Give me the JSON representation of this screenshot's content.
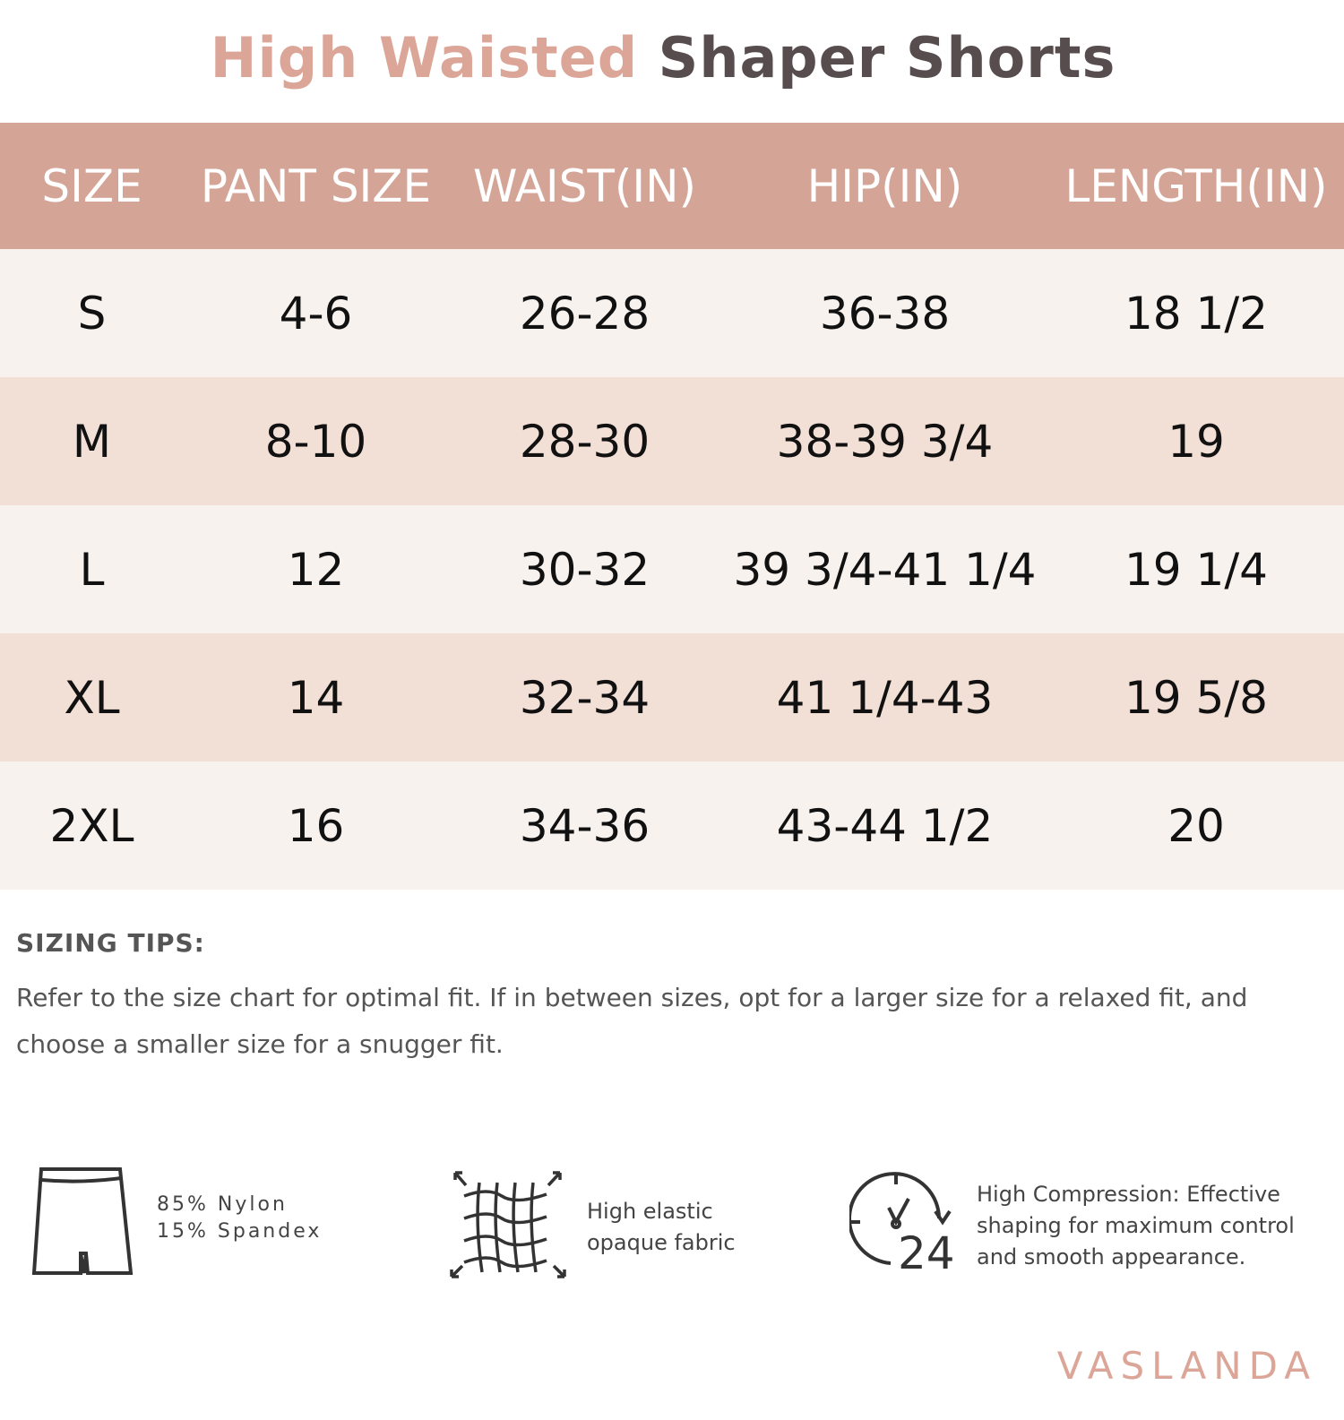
{
  "title": {
    "part1": "High Waisted",
    "part2": "Shaper Shorts"
  },
  "table": {
    "headers": [
      "SIZE",
      "PANT SIZE",
      "WAIST(IN)",
      "HIP(IN)",
      "LENGTH(IN)"
    ],
    "rows": [
      [
        "S",
        "4-6",
        "26-28",
        "36-38",
        "18 1/2"
      ],
      [
        "M",
        "8-10",
        "28-30",
        "38-39 3/4",
        "19"
      ],
      [
        "L",
        "12",
        "30-32",
        "39 3/4-41 1/4",
        "19 1/4"
      ],
      [
        "XL",
        "14",
        "32-34",
        "41 1/4-43",
        "19 5/8"
      ],
      [
        "2XL",
        "16",
        "34-36",
        "43-44 1/2",
        "20"
      ]
    ]
  },
  "tips": {
    "heading": "SIZING TIPS:",
    "text": "Refer to the size chart for optimal fit. If in between sizes, opt for a  larger size for a relaxed fit, and choose a smaller size for a snugger fit."
  },
  "features": [
    {
      "icon": "shorts-icon",
      "line1": "85% Nylon",
      "line2": "15% Spandex"
    },
    {
      "icon": "stretch-fabric-icon",
      "line1": "High elastic",
      "line2": "opaque fabric"
    },
    {
      "icon": "24-hour-clock-icon",
      "line1": "High Compression: Effective",
      "line2": "shaping for maximum control",
      "line3": "and smooth appearance."
    }
  ],
  "brand": "VASLANDA",
  "colors": {
    "accent": "#dba597",
    "header_bg": "#d4a497",
    "row_light": "#f8f2ef",
    "row_dark": "#f2dfd5",
    "title_dark": "#574d4f"
  }
}
